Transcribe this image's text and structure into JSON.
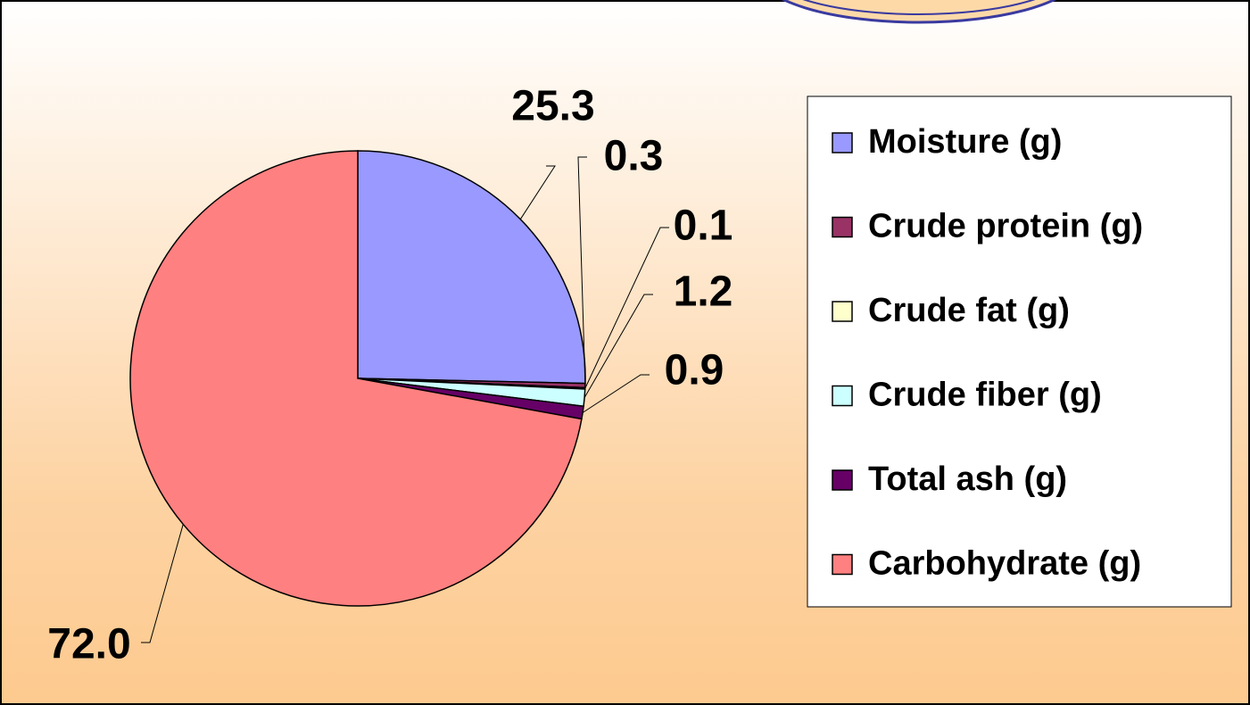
{
  "chart_data": {
    "type": "pie",
    "categories": [
      "Moisture (g)",
      "Crude protein (g)",
      "Crude fat (g)",
      "Crude fiber (g)",
      "Total ash (g)",
      "Carbohydrate (g)"
    ],
    "values": [
      25.3,
      0.3,
      0.1,
      1.2,
      0.9,
      72.0
    ],
    "value_labels": [
      "25.3",
      "0.3",
      "0.1",
      "1.2",
      "0.9",
      "72.0"
    ],
    "colors": [
      "#9999ff",
      "#993366",
      "#ffffcc",
      "#ccffff",
      "#660066",
      "#ff8080"
    ],
    "legend": "right"
  }
}
